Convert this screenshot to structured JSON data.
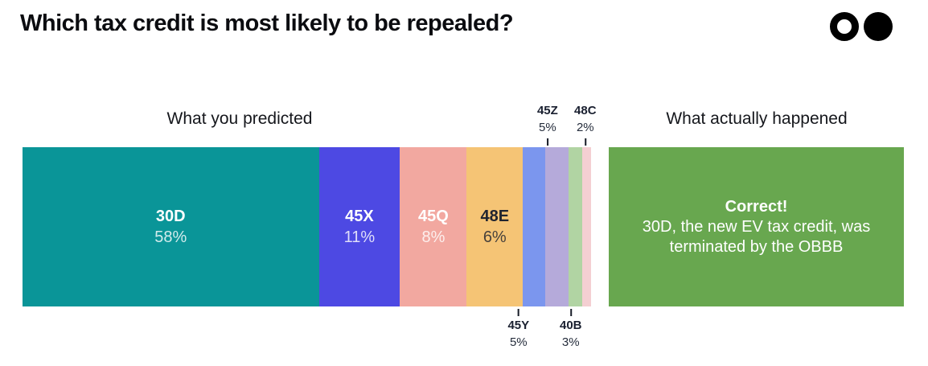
{
  "header": {
    "title": "Which tax credit is most likely to be repealed?",
    "logo_icons": [
      "ring-circle",
      "solid-circle"
    ],
    "logo_color": "#000000"
  },
  "columns": {
    "predicted_label": "What you predicted",
    "actual_label": "What actually happened"
  },
  "chart_data": {
    "type": "bar",
    "subtype": "horizontal-stacked-100pct",
    "title": "What you predicted",
    "unit": "%",
    "categories": [
      "30D",
      "45X",
      "45Q",
      "48E",
      "45Y",
      "45Z",
      "40B",
      "48C"
    ],
    "values": [
      58,
      11,
      8,
      6,
      5,
      5,
      3,
      2
    ],
    "segments": [
      {
        "code": "30D",
        "pct": 58,
        "pct_label": "58%",
        "color": "#0A9598",
        "text_color": "#FFFFFF",
        "label_position": "inside"
      },
      {
        "code": "45X",
        "pct": 11,
        "pct_label": "11%",
        "color": "#4D49E3",
        "text_color": "#FFFFFF",
        "label_position": "inside"
      },
      {
        "code": "45Q",
        "pct": 8,
        "pct_label": "8%",
        "color": "#F2A8A0",
        "text_color": "#FFFFFF",
        "label_position": "inside"
      },
      {
        "code": "48E",
        "pct": 6,
        "pct_label": "6%",
        "color": "#F5C475",
        "text_color": "#20242F",
        "label_position": "inside"
      },
      {
        "code": "45Y",
        "pct": 5,
        "pct_label": "5%",
        "color": "#7B96EE",
        "text_color": "#1A2030",
        "label_position": "below"
      },
      {
        "code": "45Z",
        "pct": 5,
        "pct_label": "5%",
        "color": "#B5AADA",
        "text_color": "#1A2030",
        "label_position": "above"
      },
      {
        "code": "40B",
        "pct": 3,
        "pct_label": "3%",
        "color": "#B1D4A3",
        "text_color": "#1A2030",
        "label_position": "below"
      },
      {
        "code": "48C",
        "pct": 2,
        "pct_label": "2%",
        "color": "#F4CFD2",
        "text_color": "#1A2030",
        "label_position": "above"
      }
    ],
    "legend": "none",
    "axes": "none"
  },
  "result_box": {
    "headline": "Correct!",
    "message": "30D, the new EV tax credit, was terminated by the OBBB",
    "bg_color": "#68A74F",
    "text_color": "#FFFFFF"
  }
}
